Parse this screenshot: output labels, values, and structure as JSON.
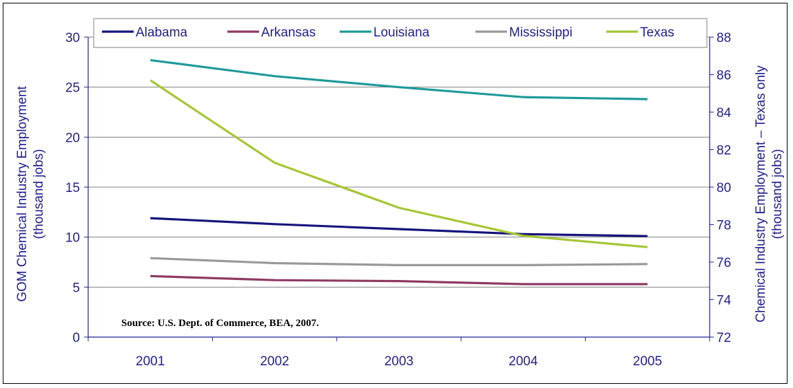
{
  "chart_data": {
    "type": "line",
    "categories": [
      "2001",
      "2002",
      "2003",
      "2004",
      "2005"
    ],
    "series": [
      {
        "name": "Alabama",
        "axis": "left",
        "color": "#14147a",
        "values": [
          11.9,
          11.3,
          10.8,
          10.3,
          10.1
        ]
      },
      {
        "name": "Arkansas",
        "axis": "left",
        "color": "#8e3a62",
        "values": [
          6.1,
          5.7,
          5.6,
          5.3,
          5.3
        ]
      },
      {
        "name": "Louisiana",
        "axis": "left",
        "color": "#1f9a9a",
        "values": [
          27.7,
          26.1,
          25.0,
          24.0,
          23.8
        ]
      },
      {
        "name": "Mississippi",
        "axis": "left",
        "color": "#999999",
        "values": [
          7.9,
          7.4,
          7.2,
          7.2,
          7.3
        ]
      },
      {
        "name": "Texas",
        "axis": "right",
        "color": "#a3c632",
        "values": [
          85.7,
          81.3,
          78.9,
          77.4,
          76.8
        ]
      }
    ],
    "ylabel": "GOM Chemical Industry Employment\n(thousand jobs)",
    "y2label": "Chemical Industry Employment – Texas only\n(thousand jobs)",
    "ylim": [
      0,
      30
    ],
    "y2lim": [
      72,
      88
    ],
    "yticks": [
      "0",
      "5",
      "10",
      "15",
      "20",
      "25",
      "30"
    ],
    "y2ticks": [
      "72",
      "74",
      "76",
      "78",
      "80",
      "82",
      "84",
      "86",
      "88"
    ],
    "grid": true,
    "legend": "top",
    "annotation": "Source:  U.S. Dept. of Commerce, BEA, 2007."
  }
}
